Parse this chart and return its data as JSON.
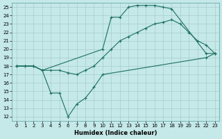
{
  "xlabel": "Humidex (Indice chaleur)",
  "bg_color": "#c5e8e8",
  "grid_color": "#a8cccc",
  "line_color": "#1a7060",
  "xlim": [
    -0.5,
    23.5
  ],
  "ylim": [
    11.5,
    25.5
  ],
  "xticks": [
    0,
    1,
    2,
    3,
    4,
    5,
    6,
    7,
    8,
    9,
    10,
    11,
    12,
    13,
    14,
    15,
    16,
    17,
    18,
    19,
    20,
    21,
    22,
    23
  ],
  "yticks": [
    12,
    13,
    14,
    15,
    16,
    17,
    18,
    19,
    20,
    21,
    22,
    23,
    24,
    25
  ],
  "line1_x": [
    0,
    1,
    2,
    3,
    10,
    11,
    12,
    13,
    14,
    15,
    16,
    17,
    18,
    22,
    23
  ],
  "line1_y": [
    18.0,
    18.0,
    18.0,
    17.5,
    20.0,
    23.8,
    23.8,
    25.0,
    25.2,
    25.2,
    25.2,
    25.0,
    24.8,
    19.5,
    19.5
  ],
  "line2_x": [
    0,
    1,
    2,
    3,
    4,
    5,
    6,
    7,
    8,
    9,
    10,
    11,
    12,
    13,
    14,
    15,
    16,
    17,
    18,
    19,
    20,
    21,
    22,
    23
  ],
  "line2_y": [
    18.0,
    18.0,
    18.0,
    17.5,
    17.5,
    17.5,
    17.2,
    17.0,
    17.5,
    18.0,
    19.0,
    20.0,
    21.0,
    21.5,
    22.0,
    22.5,
    23.0,
    23.2,
    23.5,
    23.0,
    22.0,
    21.0,
    20.5,
    19.5
  ],
  "line3_x": [
    0,
    2,
    3,
    4,
    5,
    6,
    7,
    8,
    9,
    10,
    22,
    23
  ],
  "line3_y": [
    18.0,
    18.0,
    17.5,
    14.8,
    14.8,
    12.0,
    13.5,
    14.2,
    15.5,
    17.0,
    19.0,
    19.5
  ]
}
